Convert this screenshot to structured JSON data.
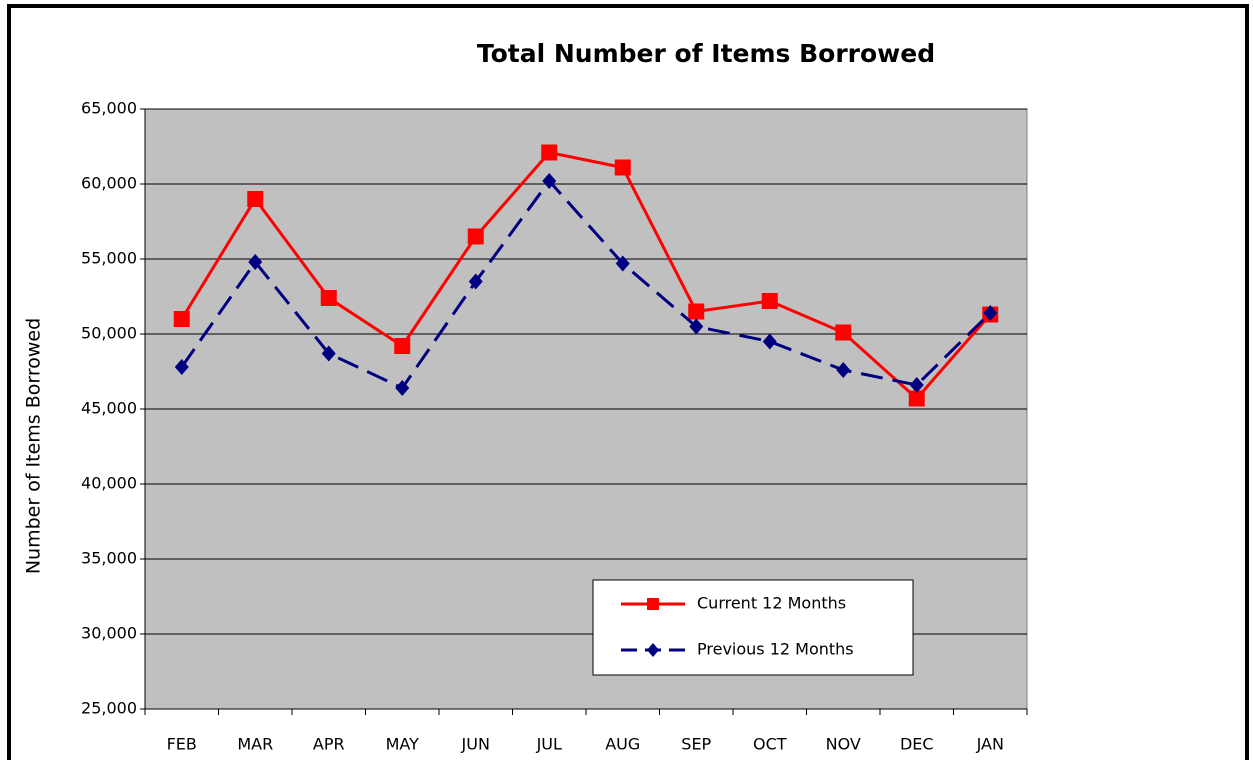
{
  "chart_data": {
    "type": "line",
    "title": "Total Number of Items Borrowed",
    "y_label": "Number of Items Borrowed",
    "categories": [
      "FEB",
      "MAR",
      "APR",
      "MAY",
      "JUN",
      "JUL",
      "AUG",
      "SEP",
      "OCT",
      "NOV",
      "DEC",
      "JAN"
    ],
    "series": [
      {
        "name": "Current 12 Months",
        "color": "#ff0000",
        "marker": "square",
        "line_style": "solid",
        "values": [
          51000,
          59000,
          52400,
          49200,
          56500,
          62100,
          61100,
          51500,
          52200,
          50100,
          45700,
          51300
        ]
      },
      {
        "name": "Previous 12 Months",
        "color": "#000080",
        "marker": "diamond",
        "line_style": "dashed",
        "values": [
          47800,
          54800,
          48700,
          46400,
          53500,
          60200,
          54700,
          50500,
          49500,
          47600,
          46600,
          51400
        ]
      }
    ],
    "ylim": [
      25000,
      65000
    ],
    "yticks": [
      {
        "value": 25000,
        "label": "25,000"
      },
      {
        "value": 30000,
        "label": "30,000"
      },
      {
        "value": 35000,
        "label": "35,000"
      },
      {
        "value": 40000,
        "label": "40,000"
      },
      {
        "value": 45000,
        "label": "45,000"
      },
      {
        "value": 50000,
        "label": "50,000"
      },
      {
        "value": 55000,
        "label": "55,000"
      },
      {
        "value": 60000,
        "label": "60,000"
      },
      {
        "value": 65000,
        "label": "65,000"
      }
    ],
    "grid": true,
    "legend": "lower right"
  }
}
